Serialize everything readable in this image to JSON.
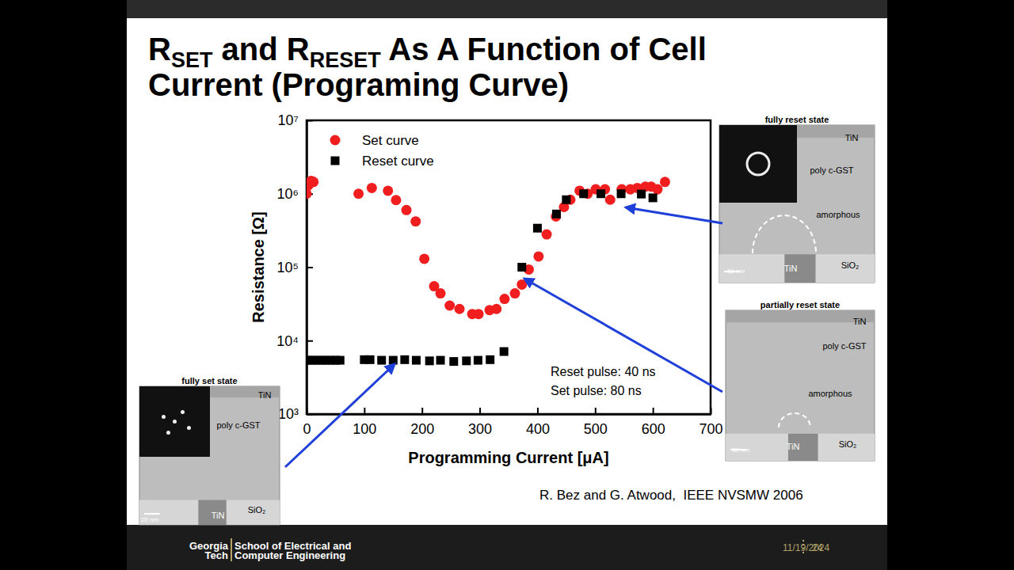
{
  "slide": {
    "title": [
      [
        {
          "text": "R"
        },
        {
          "text": "SET",
          "subscript": true
        },
        {
          "text": " and R"
        },
        {
          "text": "RESET",
          "subscript": true
        },
        {
          "text": " As A Function of Cell"
        }
      ],
      [
        {
          "text": "Current (Programing Curve)"
        }
      ]
    ],
    "citation": "R. Bez and G. Atwood,  IEEE NVSMW 2006",
    "images": [
      {
        "heading": "fully reset state",
        "labels": [
          "TiN",
          "poly c-GST",
          "amorphous",
          "SiO₂",
          "TiN",
          "50 nm"
        ]
      },
      {
        "heading": "partially reset state",
        "labels": [
          "TiN",
          "poly c-GST",
          "amorphous",
          "SiO₂",
          "TiN",
          "50 nm"
        ]
      },
      {
        "heading": "fully set state",
        "labels": [
          "TiN",
          "poly c-GST",
          "SiO₂",
          "TiN",
          "20 nm"
        ]
      }
    ],
    "footer": {
      "logo": [
        "Georgia",
        "Tech"
      ],
      "school": [
        "School of Electrical and",
        "Computer Engineering"
      ],
      "date": "11/19/2024",
      "page": 24
    }
  },
  "chart_data": {
    "type": "scatter",
    "x_label": "Programming Current [μA]",
    "y_label": "Resistance [Ω]",
    "xlim": [
      0,
      700
    ],
    "xticks": [
      0,
      100,
      200,
      300,
      400,
      500,
      600,
      700
    ],
    "ylim": [
      1000,
      10000000
    ],
    "yticks": [
      {
        "value": 1000,
        "label": "10³"
      },
      {
        "value": 10000,
        "label": "10⁴"
      },
      {
        "value": 100000,
        "label": "10⁵"
      },
      {
        "value": 1000000,
        "label": "10⁶"
      },
      {
        "value": 10000000,
        "label": "10⁷"
      }
    ],
    "log": "y",
    "grid": false,
    "legend": "upper left",
    "annotations": [
      "Reset pulse: 40 ns",
      "Set pulse: 80 ns"
    ],
    "series": [
      {
        "name": "Set curve",
        "color": "#f01e1e",
        "marker": "circle",
        "x": [
          0,
          3,
          8,
          12,
          90,
          113,
          141,
          155,
          173,
          189,
          204,
          221,
          232,
          248,
          265,
          287,
          298,
          317,
          329,
          343,
          361,
          373,
          385,
          402,
          416,
          432,
          446,
          457,
          473,
          487,
          501,
          517,
          526,
          546,
          561,
          573,
          587,
          597,
          608,
          621
        ],
        "values": [
          1000000,
          1300000,
          1500000,
          1450000,
          1000000,
          1200000,
          1100000,
          820000,
          600000,
          420000,
          130000,
          55000,
          44000,
          30000,
          27000,
          23000,
          23000,
          26000,
          27000,
          37000,
          44000,
          58000,
          93000,
          140000,
          280000,
          490000,
          660000,
          830000,
          1100000,
          1000000,
          1150000,
          1150000,
          830000,
          1150000,
          1150000,
          1200000,
          1250000,
          1250000,
          1150000,
          1450000
        ]
      },
      {
        "name": "Reset curve",
        "color": "#000000",
        "marker": "square",
        "x": [
          2,
          10,
          18,
          26,
          34,
          42,
          50,
          58,
          100,
          110,
          130,
          150,
          170,
          190,
          213,
          232,
          255,
          277,
          297,
          318,
          342,
          373,
          400,
          433,
          450,
          480,
          510,
          545,
          580,
          600
        ],
        "values": [
          5400,
          5400,
          5400,
          5400,
          5400,
          5400,
          5400,
          5400,
          5500,
          5500,
          5400,
          5400,
          5500,
          5400,
          5300,
          5400,
          5200,
          5300,
          5400,
          5500,
          7100,
          100000,
          340000,
          530000,
          830000,
          1000000,
          1000000,
          1000000,
          990000,
          880000
        ]
      }
    ]
  }
}
